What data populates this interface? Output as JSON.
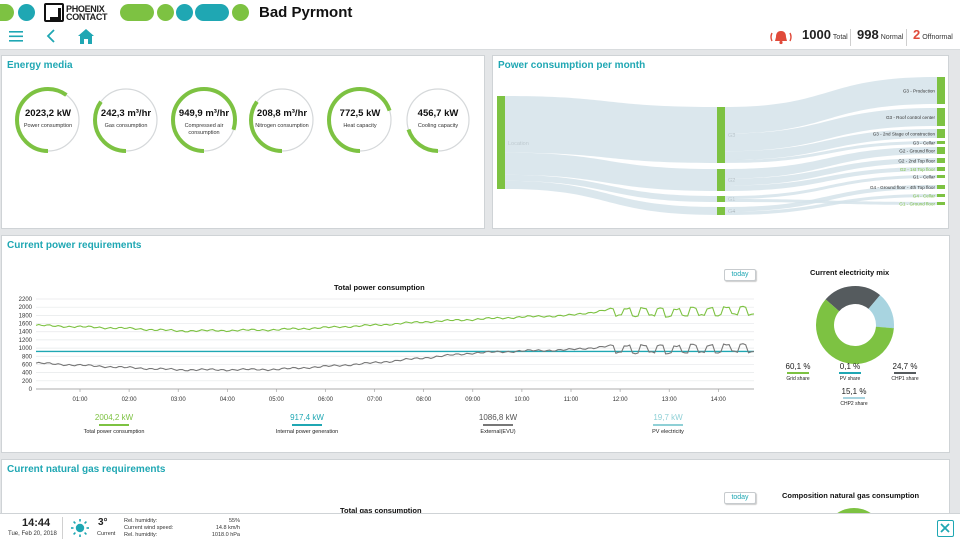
{
  "header": {
    "logo_text_line1": "PHOENIX",
    "logo_text_line2": "CONTACT",
    "site_title": "Bad Pyrmont",
    "brand_colors": {
      "green": "#7dc242",
      "teal": "#1fa7b3"
    }
  },
  "navbar": {
    "menu_icon": "hamburger-icon",
    "back_icon": "chevron-left-icon",
    "home_icon": "home-icon",
    "alarm_icon": "alarm-bell-icon",
    "alarms": [
      {
        "value": "1000",
        "label": "Total"
      },
      {
        "value": "998",
        "label": "Normal"
      },
      {
        "value": "2",
        "label": "Offnormal"
      }
    ]
  },
  "energy_media": {
    "title": "Energy media",
    "gauges": [
      {
        "value": "2023,2 kW",
        "label": "Power consumption",
        "fill": 0.6
      },
      {
        "value": "242,3 m³/hr",
        "label": "Gas consumption",
        "fill": 0.35
      },
      {
        "value": "949,9 m³/hr",
        "label": "Compressed air consumption",
        "fill": 0.8
      },
      {
        "value": "208,8 m³/hr",
        "label": "Nitrogen consumption",
        "fill": 0.35
      },
      {
        "value": "772,5 kW",
        "label": "Heat capacity",
        "fill": 0.7
      },
      {
        "value": "456,7 kW",
        "label": "Cooling capacity",
        "fill": 0.2
      }
    ]
  },
  "power_month": {
    "title": "Power consumption per month",
    "source_label": "Location",
    "mid_labels": [
      "G3",
      "G2",
      "G1",
      "G4"
    ],
    "targets": [
      "G3 - Production",
      "G3 - Roof control center",
      "G3 - 2nd Stage of construction",
      "G3 - Cellar",
      "G2 - Ground floor",
      "G2 - 2nd Top floor",
      "G2 - 1st Top floor",
      "G1 - Cellar",
      "G4 - Ground floor - 4th Top floor",
      "G4 - Cellar",
      "G1 - Ground floor"
    ]
  },
  "power_requirements": {
    "title": "Current power requirements",
    "today_label": "today",
    "legend": [
      {
        "value": "2004,2 kW",
        "label": "Total power consumption",
        "color": "#7dc242"
      },
      {
        "value": "917,4 kW",
        "label": "Internal power generation",
        "color": "#1fa7b3"
      },
      {
        "value": "1086,8 kW",
        "label": "External(EVU)",
        "color": "#777777"
      },
      {
        "value": "19,7 kW",
        "label": "PV electricity",
        "color": "#8fd0d6"
      }
    ]
  },
  "chart_data": [
    {
      "type": "line",
      "title": "Total power consumption",
      "xlabel": "",
      "ylabel": "",
      "x": [
        "01:00",
        "02:00",
        "03:00",
        "04:00",
        "05:00",
        "06:00",
        "07:00",
        "08:00",
        "09:00",
        "10:00",
        "11:00",
        "12:00",
        "13:00",
        "14:00"
      ],
      "ylim": [
        0,
        2200
      ],
      "yticks": [
        0,
        200,
        400,
        600,
        800,
        1000,
        1200,
        1400,
        1600,
        1800,
        2000,
        2200
      ],
      "grid": true,
      "series": [
        {
          "name": "Total power consumption",
          "color": "#7dc242",
          "values": [
            1520,
            1480,
            1420,
            1430,
            1450,
            1500,
            1560,
            1640,
            1700,
            1760,
            1800,
            1980,
            1960,
            1990
          ]
        },
        {
          "name": "Internal power generation",
          "color": "#1fa7b3",
          "values": [
            920,
            920,
            920,
            920,
            920,
            920,
            920,
            920,
            920,
            920,
            920,
            920,
            920,
            920
          ]
        },
        {
          "name": "External(EVU)",
          "color": "#777777",
          "values": [
            580,
            520,
            470,
            470,
            480,
            550,
            640,
            760,
            880,
            930,
            960,
            1070,
            1060,
            1080
          ]
        }
      ]
    },
    {
      "type": "pie",
      "title": "Current electricity mix",
      "labels": [
        "Grid share",
        "PV share",
        "CHP1 share",
        "CHP2 share"
      ],
      "values": [
        60.1,
        0.1,
        24.7,
        15.1
      ],
      "display_values": [
        "60,1 %",
        "0,1 %",
        "24,7 %",
        "15,1 %"
      ],
      "colors": [
        "#7dc242",
        "#1fa7b3",
        "#555b5e",
        "#a8d4e0"
      ]
    }
  ],
  "gas_requirements": {
    "title": "Current natural gas requirements",
    "today_label": "today",
    "chart_title": "Total gas consumption",
    "composition_title": "Composition natural gas consumption"
  },
  "footer": {
    "time": "14:44",
    "date": "Tue, Feb 20, 2018",
    "weather_icon": "sun-icon",
    "temperature": "3°",
    "temperature_label": "Current",
    "humidity_label": "Rel. humidity:",
    "humidity_value": "55%",
    "wind_label": "Current wind speed:",
    "wind_value": "14.8 km/h",
    "pressure_label": "Rel. humidity:",
    "pressure_value": "1018.0 hPa",
    "close_icon": "close-icon"
  }
}
